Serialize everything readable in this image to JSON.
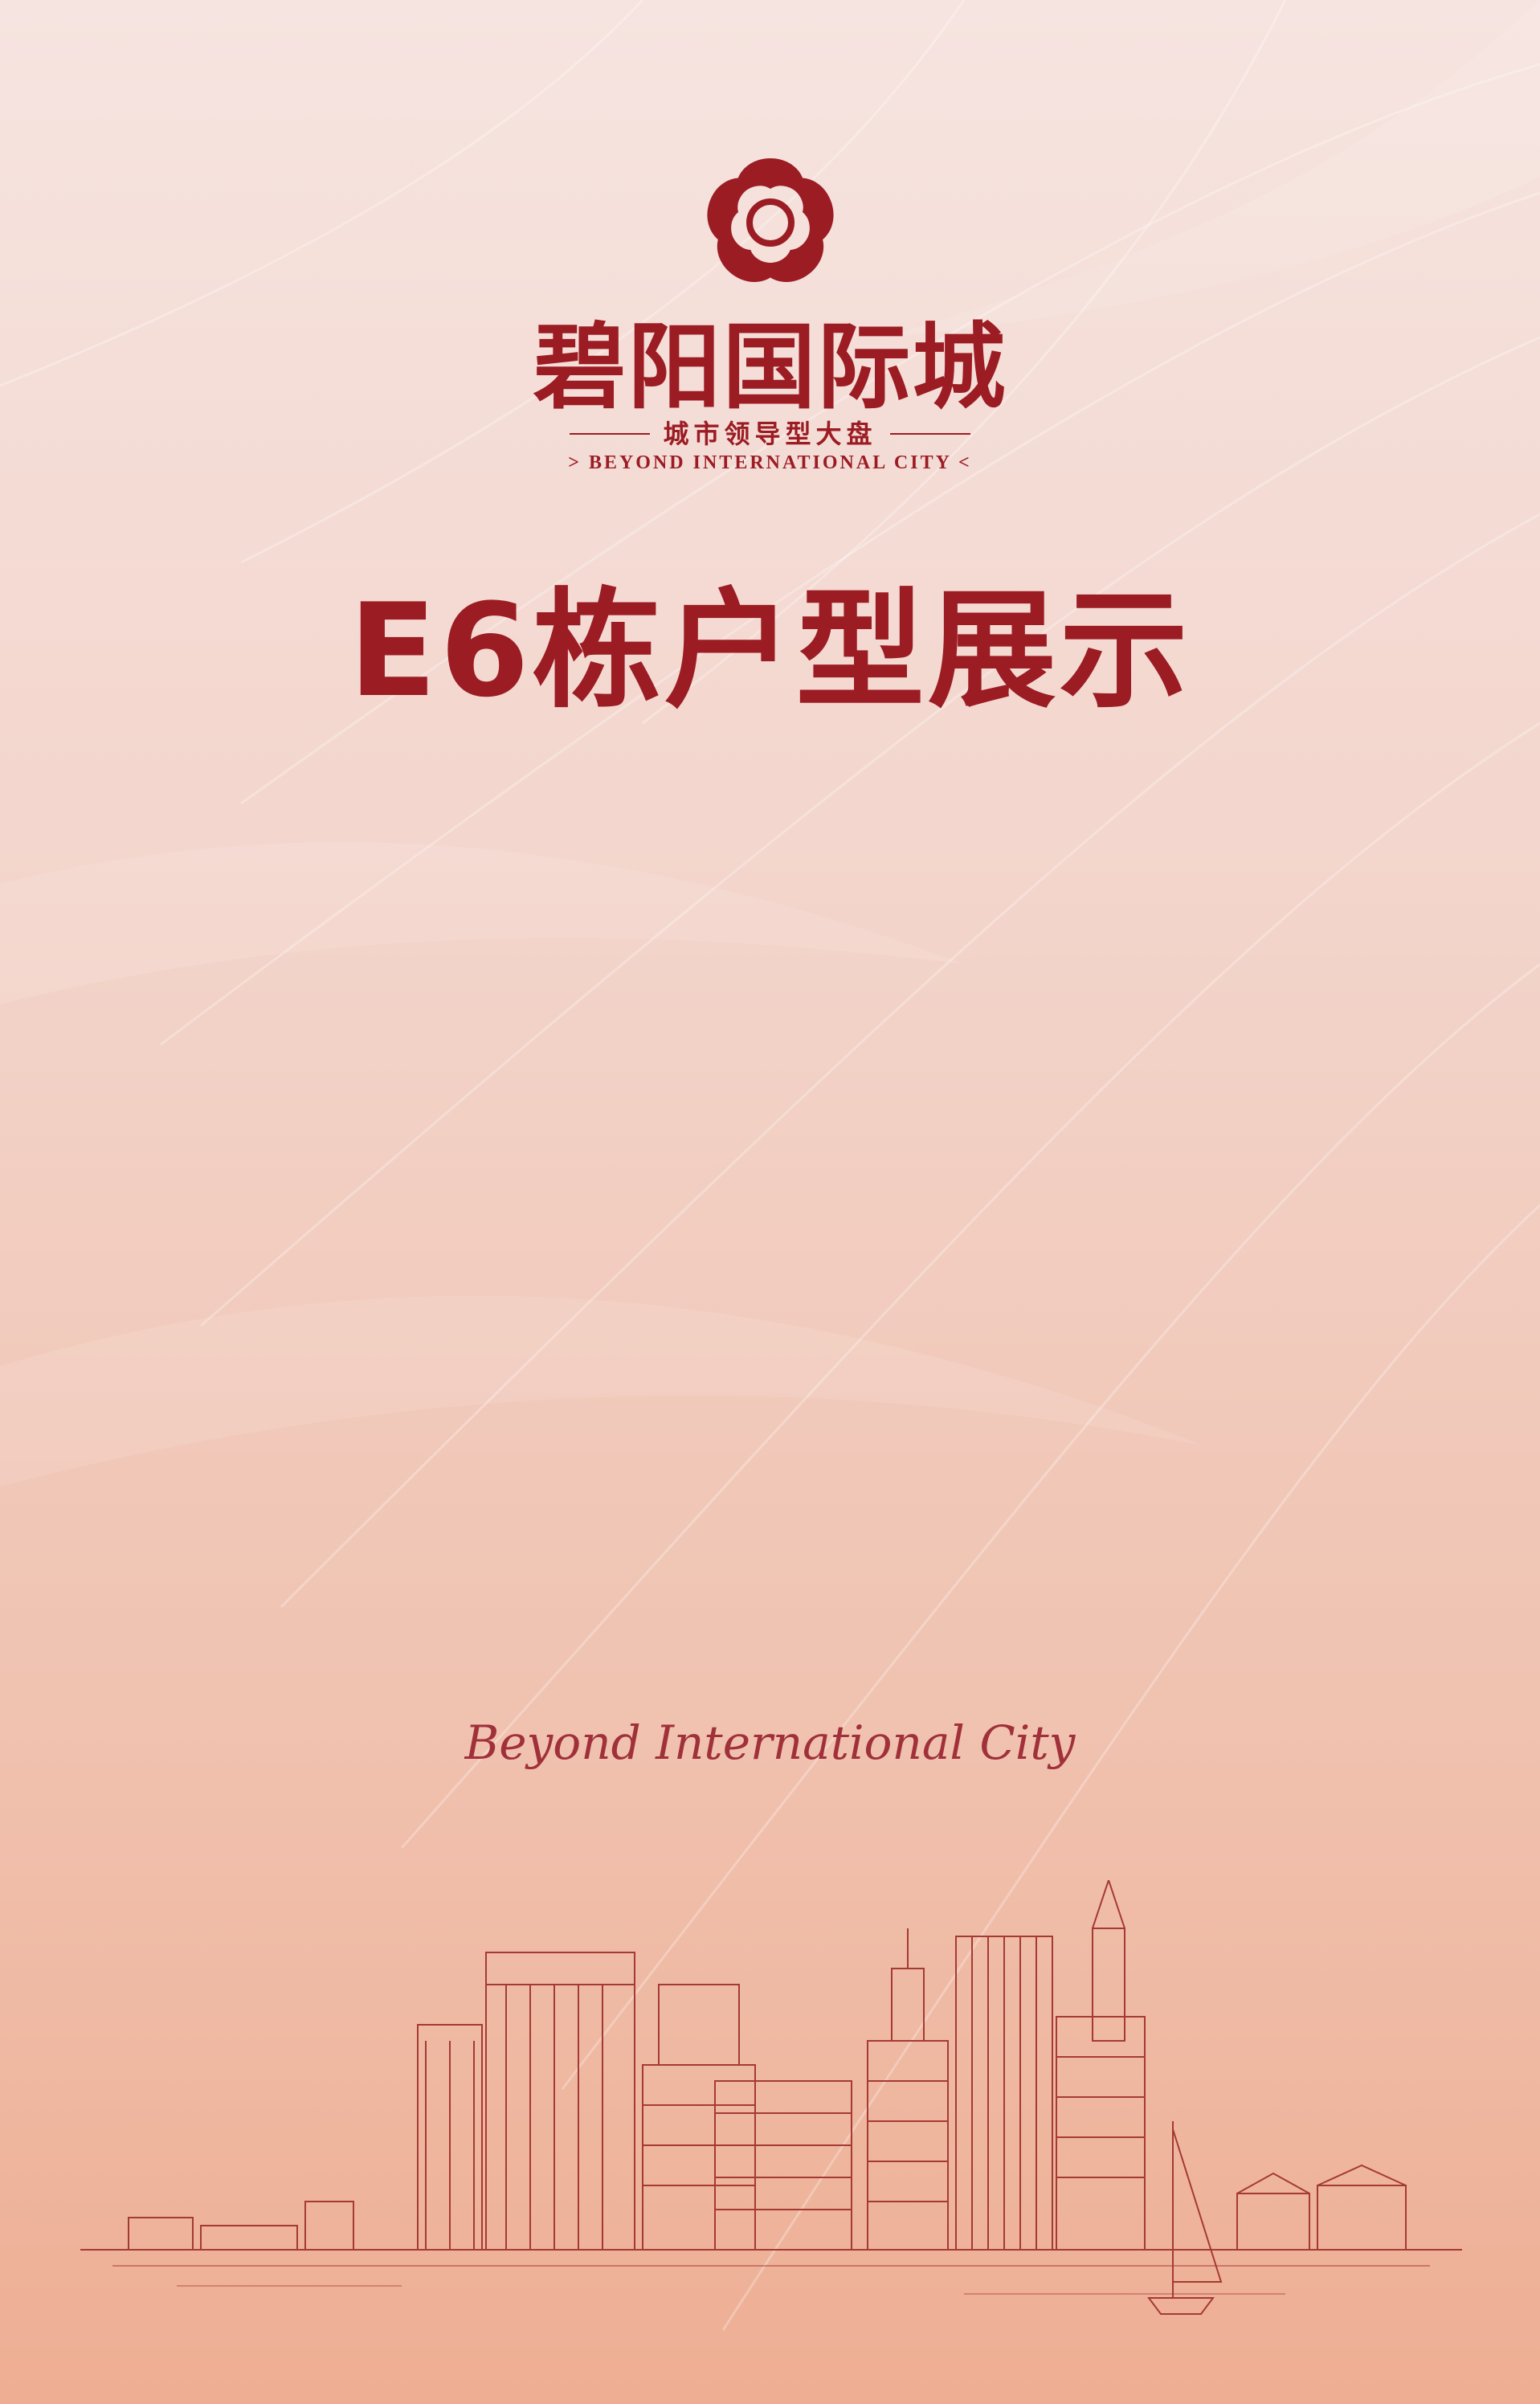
{
  "brand": {
    "name_cn": "碧阳国际城",
    "tagline_cn": "城市领导型大盘",
    "name_en": "> BEYOND INTERNATIONAL CITY <",
    "script_en": "Beyond International City",
    "logo_icon": "flower-logo-icon",
    "primary_color": "#9c1c24"
  },
  "page": {
    "title": "E6栋户型展示"
  },
  "illustration": {
    "skyline_icon": "city-skyline-illustration",
    "line_color": "#a53a34"
  }
}
